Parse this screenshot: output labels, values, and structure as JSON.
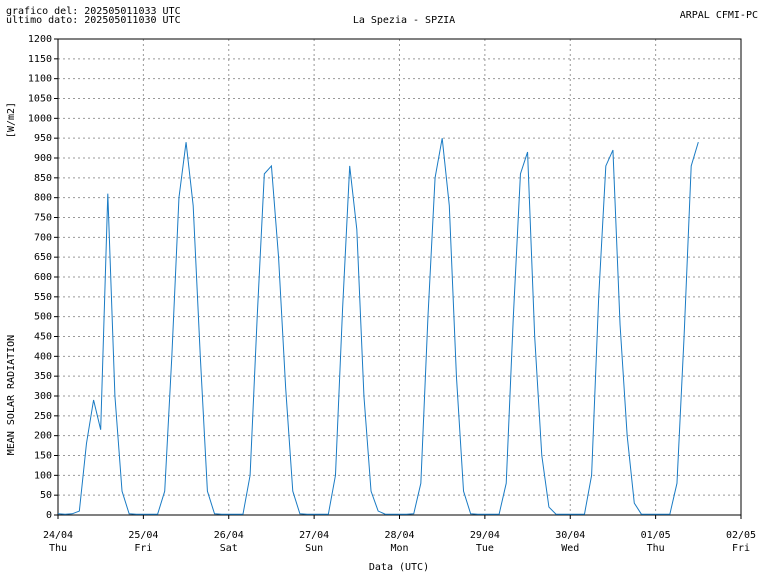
{
  "header": {
    "generated": "grafico del: 202505011033 UTC",
    "last_data": "ultimo dato: 202505011030 UTC",
    "station": "La Spezia - SPZIA",
    "source": "ARPAL CFMI-PC"
  },
  "chart_data": {
    "type": "line",
    "y_label_unit": "[W/m2]",
    "y_label": "MEAN SOLAR RADIATION",
    "x_label": "Data (UTC)",
    "grid": true,
    "xlim": [
      0,
      192
    ],
    "xticks": [
      {
        "value": 0,
        "label": "24/04",
        "day": "Thu"
      },
      {
        "value": 24,
        "label": "25/04",
        "day": "Fri"
      },
      {
        "value": 48,
        "label": "26/04",
        "day": "Sat"
      },
      {
        "value": 72,
        "label": "27/04",
        "day": "Sun"
      },
      {
        "value": 96,
        "label": "28/04",
        "day": "Mon"
      },
      {
        "value": 120,
        "label": "29/04",
        "day": "Tue"
      },
      {
        "value": 144,
        "label": "30/04",
        "day": "Wed"
      },
      {
        "value": 168,
        "label": "01/05",
        "day": "Thu"
      },
      {
        "value": 192,
        "label": "02/05",
        "day": "Fri"
      }
    ],
    "ylim": [
      0,
      1200
    ],
    "yticks": [
      0,
      50,
      100,
      150,
      200,
      250,
      300,
      350,
      400,
      450,
      500,
      550,
      600,
      650,
      700,
      750,
      800,
      850,
      900,
      950,
      1000,
      1050,
      1100,
      1150,
      1200
    ],
    "x": [
      0,
      2,
      4,
      6,
      8,
      10,
      12,
      14,
      16,
      18,
      20,
      22,
      24,
      26,
      28,
      30,
      32,
      34,
      36,
      38,
      40,
      42,
      44,
      46,
      48,
      50,
      52,
      54,
      56,
      58,
      60,
      62,
      64,
      66,
      68,
      70,
      72,
      74,
      76,
      78,
      80,
      82,
      84,
      86,
      88,
      90,
      92,
      94,
      96,
      98,
      100,
      102,
      104,
      106,
      108,
      110,
      112,
      114,
      116,
      118,
      120,
      122,
      124,
      126,
      128,
      130,
      132,
      134,
      136,
      138,
      140,
      142,
      144,
      146,
      148,
      150,
      152,
      154,
      156,
      158,
      160,
      162,
      164,
      166,
      168,
      170,
      172,
      174,
      176,
      178,
      180
    ],
    "series": [
      {
        "color": "#1a7bc4",
        "values": [
          3,
          2,
          3,
          10,
          180,
          290,
          215,
          810,
          300,
          60,
          3,
          2,
          2,
          2,
          2,
          60,
          400,
          800,
          940,
          780,
          400,
          60,
          3,
          2,
          2,
          2,
          2,
          100,
          500,
          860,
          880,
          650,
          320,
          60,
          3,
          2,
          2,
          2,
          2,
          100,
          520,
          880,
          720,
          300,
          60,
          10,
          2,
          2,
          2,
          2,
          3,
          80,
          500,
          850,
          950,
          780,
          350,
          60,
          3,
          2,
          2,
          2,
          2,
          80,
          500,
          860,
          915,
          450,
          150,
          20,
          2,
          2,
          2,
          2,
          2,
          100,
          550,
          880,
          920,
          480,
          200,
          30,
          2,
          2,
          2,
          2,
          2,
          80,
          450,
          880,
          940
        ]
      }
    ]
  }
}
